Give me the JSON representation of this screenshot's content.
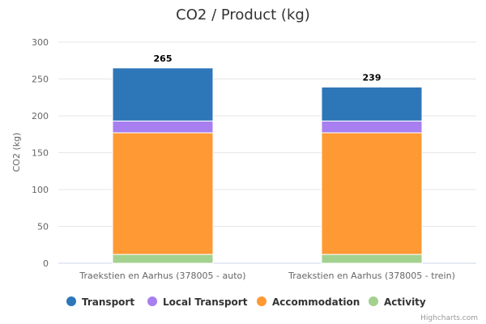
{
  "chart_data": {
    "type": "bar",
    "stacked": true,
    "title": "CO2 / Product (kg)",
    "ylabel": "CO2 (kg)",
    "xlabel": "",
    "ylim": [
      0,
      300
    ],
    "yticks": [
      0,
      50,
      100,
      150,
      200,
      250,
      300
    ],
    "grid": true,
    "legend": "bottom",
    "categories": [
      "Traekstien en Aarhus (378005 - auto)",
      "Traekstien en Aarhus (378005 - trein)"
    ],
    "series": [
      {
        "name": "Activity",
        "color": "#a3d18f",
        "values": [
          12,
          12
        ]
      },
      {
        "name": "Accommodation",
        "color": "#ff9933",
        "values": [
          165,
          165
        ]
      },
      {
        "name": "Local Transport",
        "color": "#a77ff0",
        "values": [
          16,
          16
        ]
      },
      {
        "name": "Transport",
        "color": "#2d76b8",
        "values": [
          72,
          46
        ]
      }
    ],
    "totals": [
      265,
      239
    ],
    "legend_order": [
      "Transport",
      "Local Transport",
      "Accommodation",
      "Activity"
    ]
  },
  "credits": "Highcharts.com"
}
